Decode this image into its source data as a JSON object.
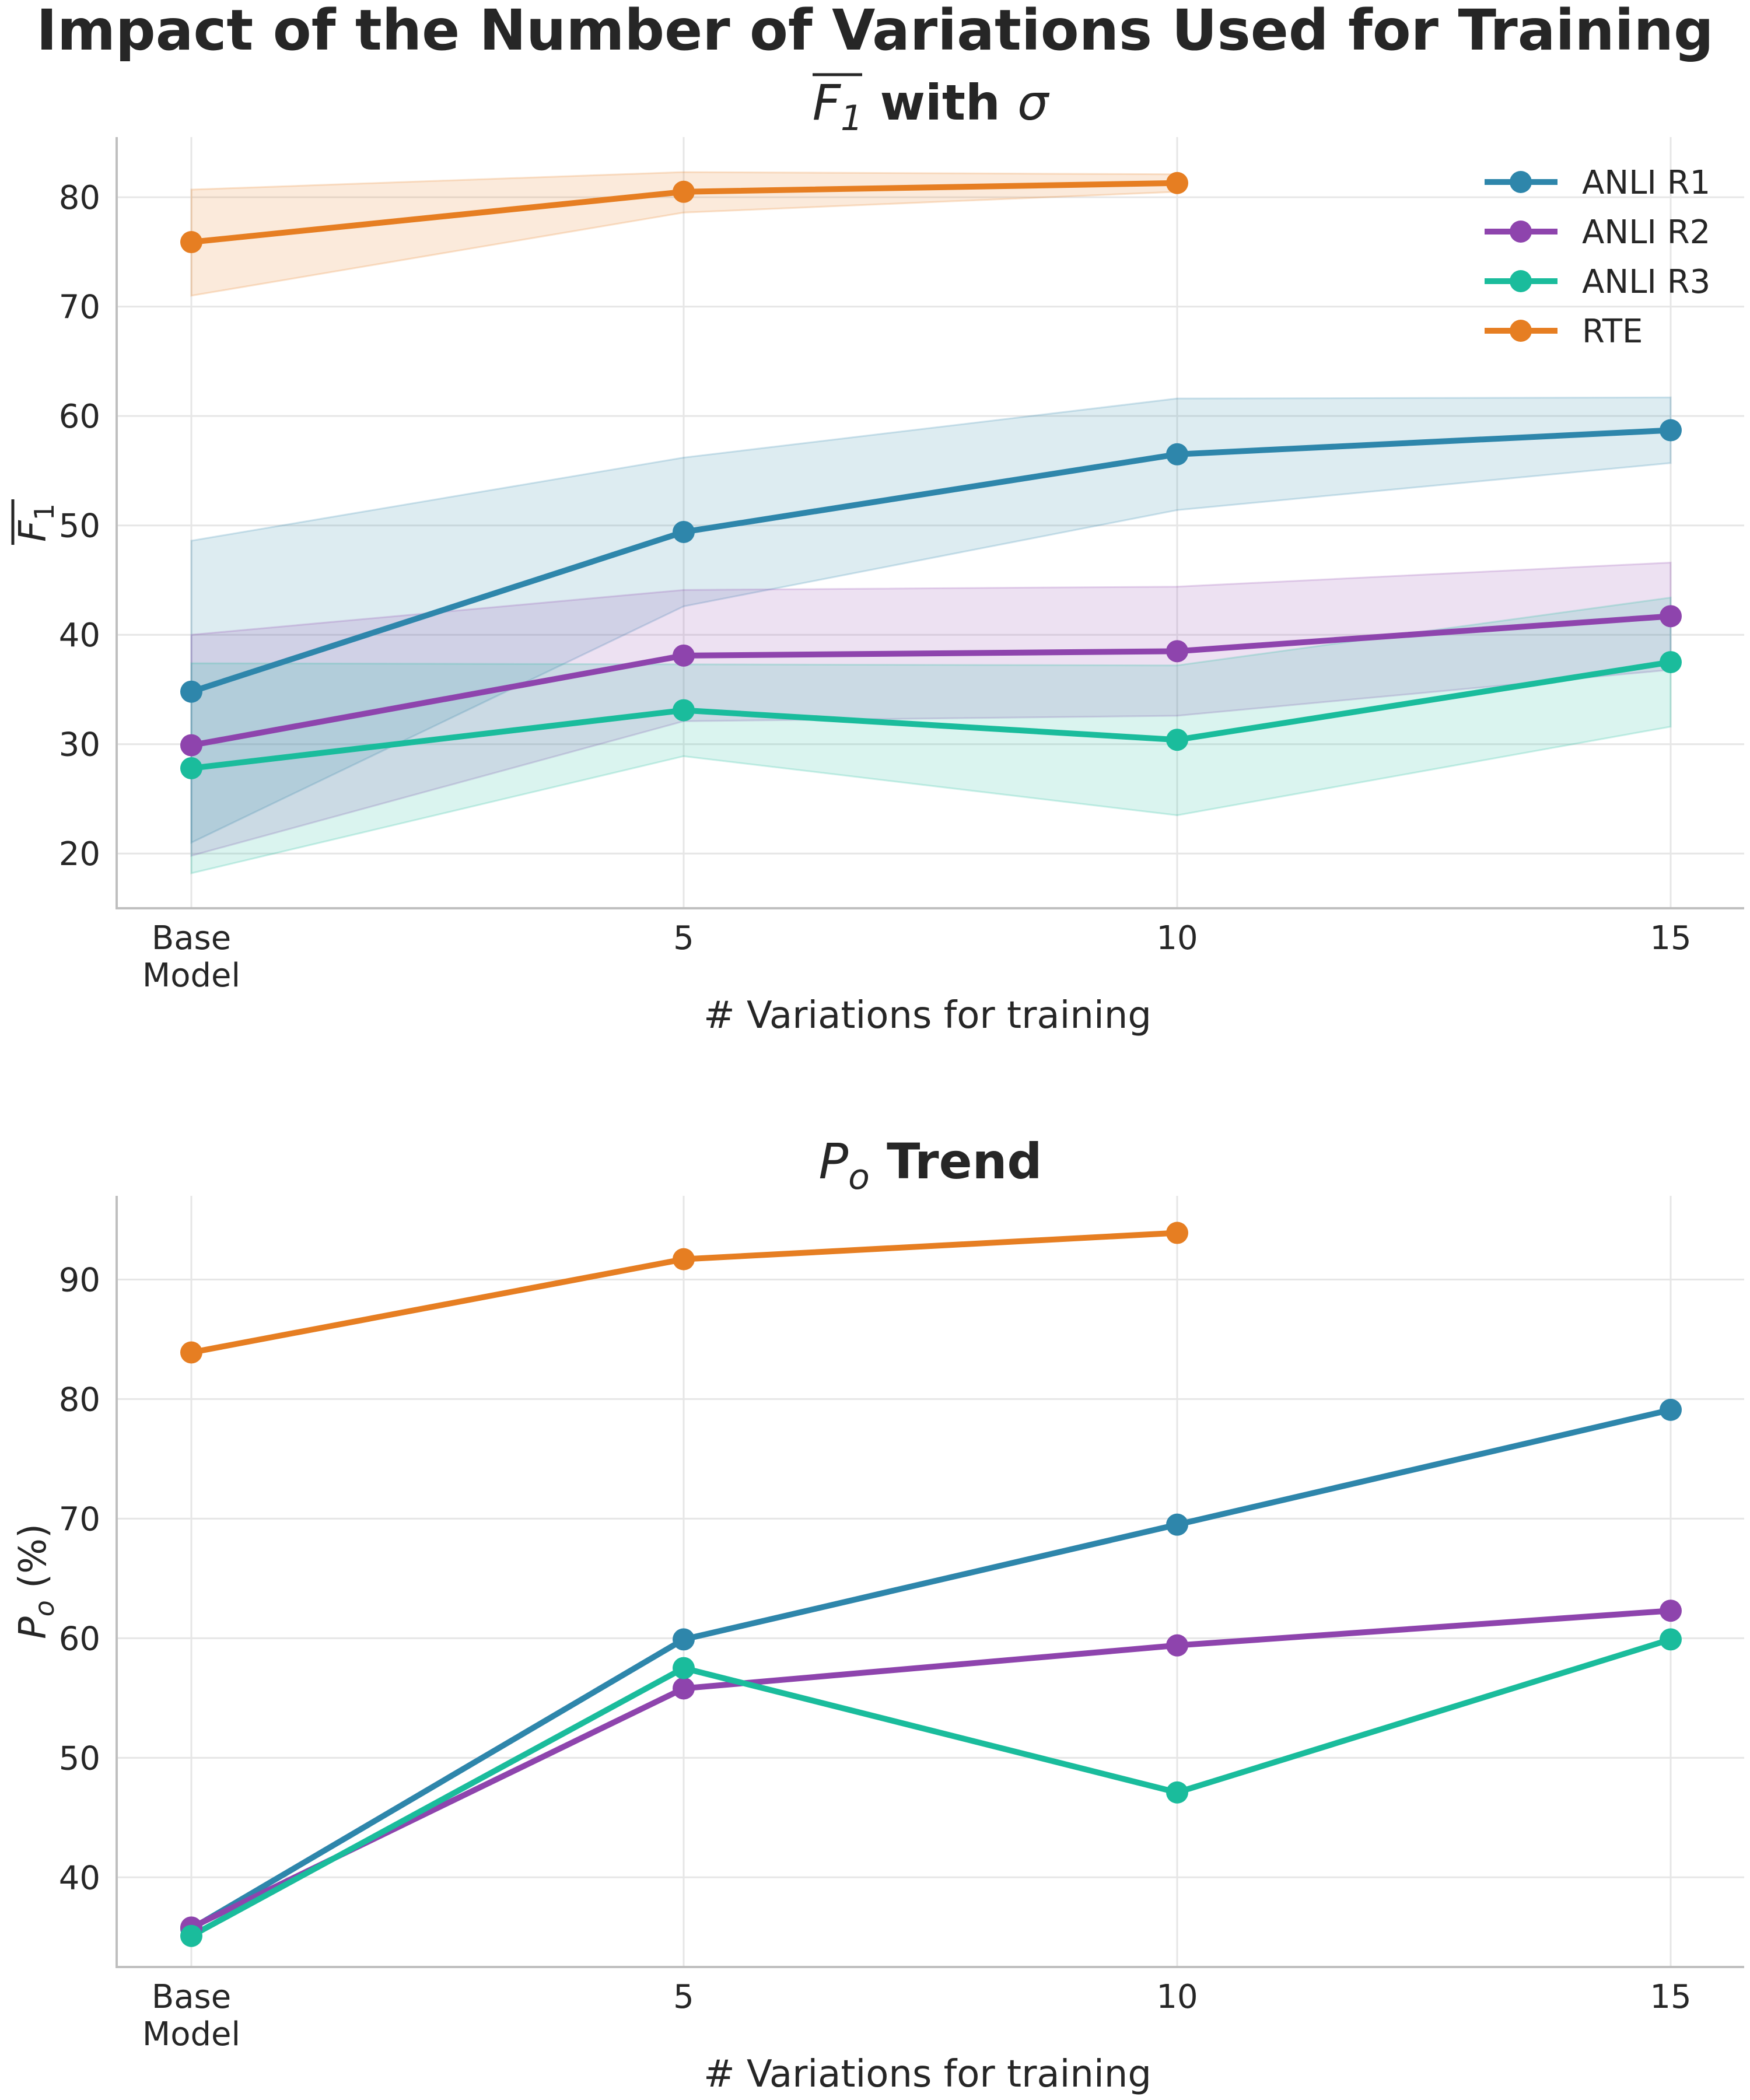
{
  "title": "Impact of the Number of Variations Used for Training",
  "colors": {
    "ANLI R1": "#2e86ab",
    "ANLI R2": "#8e44ad",
    "ANLI R3": "#1abc9c",
    "RTE": "#e67e22"
  },
  "chart_data": [
    {
      "type": "line",
      "title_math": "F",
      "title_math_sub": "1",
      "title_rest": " with ",
      "title_sigma": "σ",
      "xlabel": "# Variations for training",
      "ylabel_math": "F",
      "ylabel_sub": "1",
      "categories": [
        "Base\nModel",
        "5",
        "10",
        "15"
      ],
      "ylim": [
        15,
        85.5
      ],
      "yticks": [
        20,
        30,
        40,
        50,
        60,
        70,
        80
      ],
      "grid": true,
      "legend": "top-right",
      "series": [
        {
          "name": "ANLI R1",
          "values": [
            34.8,
            49.4,
            56.5,
            58.7
          ],
          "lower": [
            21.0,
            42.6,
            51.4,
            55.7
          ],
          "upper": [
            48.6,
            56.2,
            61.6,
            61.7
          ]
        },
        {
          "name": "ANLI R2",
          "values": [
            29.9,
            38.1,
            38.5,
            41.7
          ],
          "lower": [
            19.8,
            32.1,
            32.6,
            36.8
          ],
          "upper": [
            40.0,
            44.1,
            44.4,
            46.6
          ]
        },
        {
          "name": "ANLI R3",
          "values": [
            27.8,
            33.1,
            30.4,
            37.5
          ],
          "lower": [
            18.2,
            28.9,
            23.5,
            31.6
          ],
          "upper": [
            37.4,
            37.3,
            37.2,
            43.4
          ]
        },
        {
          "name": "RTE",
          "values": [
            75.9,
            80.5,
            81.3,
            null
          ],
          "lower": [
            71.0,
            78.6,
            80.5,
            null
          ],
          "upper": [
            80.7,
            82.3,
            82.1,
            null
          ]
        }
      ]
    },
    {
      "type": "line",
      "title_math": "P",
      "title_math_sub": "o",
      "title_rest": " Trend",
      "xlabel": "# Variations for training",
      "ylabel_math": "P",
      "ylabel_sub": "o",
      "ylabel_rest": " (%)",
      "categories": [
        "Base\nModel",
        "5",
        "10",
        "15"
      ],
      "ylim": [
        32.5,
        97
      ],
      "yticks": [
        40,
        50,
        60,
        70,
        80,
        90
      ],
      "grid": true,
      "series": [
        {
          "name": "ANLI R1",
          "values": [
            35.7,
            59.9,
            69.5,
            79.1
          ]
        },
        {
          "name": "ANLI R2",
          "values": [
            35.8,
            55.8,
            59.4,
            62.3
          ]
        },
        {
          "name": "ANLI R3",
          "values": [
            35.1,
            57.5,
            47.1,
            59.9
          ]
        },
        {
          "name": "RTE",
          "values": [
            83.9,
            91.7,
            93.9,
            null
          ]
        }
      ]
    }
  ]
}
